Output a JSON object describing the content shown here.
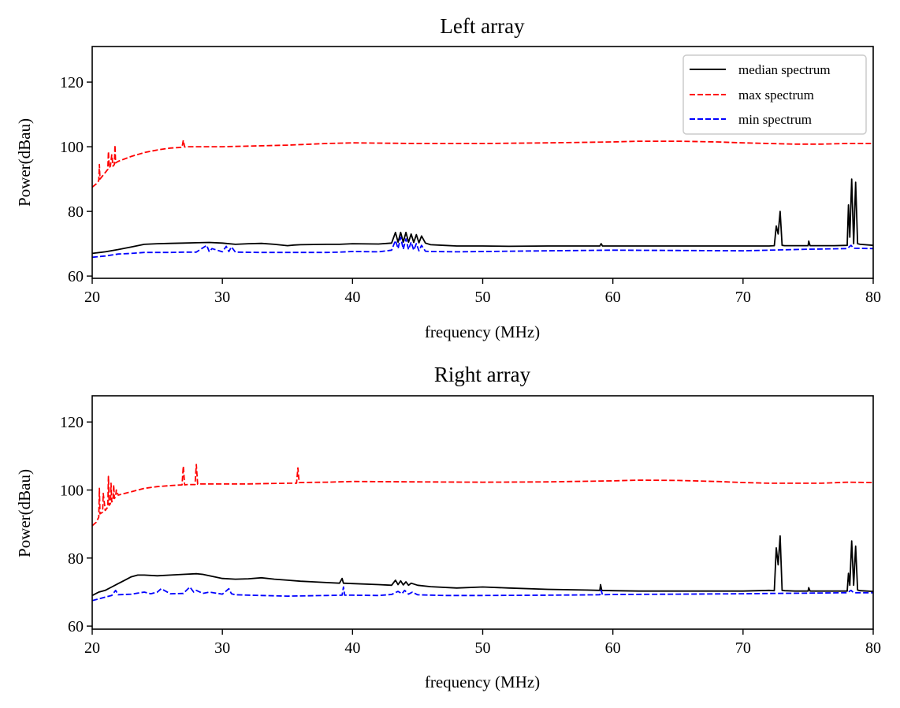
{
  "chart_data": [
    {
      "type": "line",
      "title": "Left array",
      "xlabel": "frequency (MHz)",
      "ylabel": "Power(dBau)",
      "xlim": [
        20,
        80
      ],
      "ylim": [
        59.3,
        131.0
      ],
      "xticks": [
        20,
        30,
        40,
        50,
        60,
        70,
        80
      ],
      "yticks": [
        60,
        80,
        100,
        120
      ],
      "grid": false,
      "legend": {
        "placement": "top-right",
        "entries": [
          "median spectrum",
          "max spectrum",
          "min spectrum"
        ]
      },
      "series": [
        {
          "name": "median spectrum",
          "color": "#000000",
          "style": "solid",
          "x": [
            20,
            21,
            22,
            23,
            24,
            25,
            26,
            27,
            28,
            29,
            30,
            31,
            32,
            33,
            34,
            35,
            35.5,
            36,
            38,
            39,
            40,
            42,
            43,
            43.3,
            43.5,
            43.7,
            43.9,
            44.1,
            44.3,
            44.5,
            44.7,
            44.9,
            45.1,
            45.3,
            45.6,
            46,
            47,
            48,
            50,
            52,
            55,
            58,
            59,
            59.1,
            59.2,
            60,
            62,
            65,
            68,
            70,
            72,
            72.4,
            72.55,
            72.7,
            72.85,
            73.0,
            73.2,
            74,
            75,
            75.05,
            75.15,
            76,
            77,
            78,
            78.1,
            78.2,
            78.35,
            78.5,
            78.65,
            78.8,
            79,
            80
          ],
          "y": [
            67,
            67.5,
            68.2,
            69,
            69.8,
            70,
            70.1,
            70.2,
            70.3,
            70.4,
            70.2,
            69.8,
            70,
            70.1,
            69.8,
            69.4,
            69.6,
            69.7,
            69.8,
            69.8,
            70,
            69.9,
            70.2,
            73.5,
            70.5,
            73.5,
            70.5,
            73.5,
            70.5,
            73,
            70.4,
            72.8,
            70.3,
            72.4,
            70.2,
            69.7,
            69.5,
            69.3,
            69.3,
            69.2,
            69.3,
            69.3,
            69.3,
            70,
            69.3,
            69.3,
            69.3,
            69.3,
            69.3,
            69.3,
            69.3,
            69.4,
            75.5,
            73,
            80,
            69.5,
            69.4,
            69.4,
            69.4,
            70.8,
            69.4,
            69.4,
            69.4,
            69.5,
            82,
            72,
            90,
            70,
            89,
            70,
            69.8,
            69.5
          ]
        },
        {
          "name": "max spectrum",
          "color": "#ff0000",
          "style": "dashed",
          "x": [
            20,
            20.3,
            20.5,
            20.55,
            20.6,
            20.8,
            21,
            21.2,
            21.25,
            21.3,
            21.4,
            21.5,
            21.6,
            21.7,
            21.75,
            21.8,
            22,
            23,
            24,
            25,
            26,
            26.9,
            27,
            27.1,
            27.3,
            28,
            30,
            32,
            35,
            38,
            40,
            45,
            50,
            55,
            60,
            62,
            65,
            68,
            70,
            72,
            74,
            76,
            78,
            80
          ],
          "y": [
            87.5,
            88.5,
            89.5,
            94.5,
            90,
            91,
            92,
            93,
            98.5,
            93.5,
            94,
            97.5,
            94,
            94.5,
            100.5,
            95,
            95.5,
            97,
            98.2,
            99,
            99.6,
            99.8,
            102,
            99.9,
            100,
            100,
            100,
            100.2,
            100.5,
            101,
            101.2,
            101,
            101,
            101.2,
            101.5,
            101.7,
            101.7,
            101.5,
            101.2,
            101,
            100.8,
            100.8,
            101,
            101
          ]
        },
        {
          "name": "min spectrum",
          "color": "#0000ff",
          "style": "dashed",
          "x": [
            20,
            21,
            22,
            23,
            24,
            25,
            26,
            27,
            28,
            28.8,
            29,
            29.2,
            30,
            30.3,
            30.5,
            30.7,
            31,
            33,
            35,
            38,
            39,
            40,
            42,
            43,
            43.3,
            43.5,
            43.7,
            43.9,
            44.1,
            44.3,
            44.5,
            44.7,
            44.9,
            45.1,
            45.3,
            45.6,
            46,
            48,
            50,
            55,
            60,
            65,
            70,
            72,
            75,
            78,
            78.3,
            78.5,
            80
          ],
          "y": [
            65.8,
            66.2,
            66.8,
            67,
            67.3,
            67.3,
            67.3,
            67.4,
            67.4,
            69.5,
            67.5,
            68.5,
            67.5,
            69.2,
            67.6,
            69,
            67.4,
            67.3,
            67.3,
            67.3,
            67.4,
            67.6,
            67.5,
            68,
            71,
            68.5,
            72,
            68.3,
            71.5,
            68.2,
            70.5,
            68,
            70,
            67.8,
            69.5,
            67.7,
            67.6,
            67.5,
            67.6,
            67.8,
            68,
            67.9,
            67.8,
            68,
            68.3,
            68.5,
            69.5,
            68.6,
            68.5
          ]
        }
      ]
    },
    {
      "type": "line",
      "title": "Right array",
      "xlabel": "frequency (MHz)",
      "ylabel": "Power(dBau)",
      "xlim": [
        20,
        80
      ],
      "ylim": [
        59.1,
        127.7
      ],
      "xticks": [
        20,
        30,
        40,
        50,
        60,
        70,
        80
      ],
      "yticks": [
        60,
        80,
        100,
        120
      ],
      "grid": false,
      "series": [
        {
          "name": "median spectrum",
          "color": "#000000",
          "style": "solid",
          "x": [
            20,
            20.5,
            21,
            21.5,
            22,
            22.5,
            23,
            23.5,
            24,
            25,
            26,
            27,
            28,
            28.5,
            29,
            30,
            31,
            32,
            33,
            34,
            35,
            36,
            37,
            38,
            39,
            39.2,
            39.3,
            40,
            42,
            43,
            43.3,
            43.5,
            43.7,
            43.9,
            44.1,
            44.3,
            44.5,
            45,
            46,
            48,
            50,
            52,
            55,
            58,
            59,
            59.05,
            59.15,
            60,
            62,
            65,
            68,
            70,
            72,
            72.4,
            72.55,
            72.7,
            72.85,
            73,
            73.2,
            74,
            75,
            75.05,
            75.15,
            76,
            78,
            78.1,
            78.2,
            78.35,
            78.5,
            78.65,
            78.8,
            79,
            80
          ],
          "y": [
            69,
            70,
            70.5,
            71.5,
            72.5,
            73.5,
            74.5,
            75,
            75,
            74.8,
            75,
            75.2,
            75.4,
            75.2,
            74.8,
            74,
            73.8,
            73.9,
            74.2,
            73.8,
            73.5,
            73.2,
            73,
            72.8,
            72.6,
            74,
            72.6,
            72.5,
            72.2,
            72,
            73.5,
            72.2,
            73.3,
            72.1,
            73,
            72,
            72.6,
            72,
            71.6,
            71.2,
            71.5,
            71.2,
            70.8,
            70.6,
            70.5,
            72.2,
            70.5,
            70.4,
            70.3,
            70.3,
            70.3,
            70.3,
            70.5,
            70.4,
            83,
            78,
            86.5,
            70.5,
            70.4,
            70.3,
            70.3,
            71.3,
            70.3,
            70.3,
            70.3,
            75.5,
            72,
            85,
            72,
            83.5,
            70.6,
            70.4,
            70.2
          ]
        },
        {
          "name": "max spectrum",
          "color": "#ff0000",
          "style": "dashed",
          "x": [
            20,
            20.3,
            20.5,
            20.55,
            20.6,
            20.8,
            20.85,
            21,
            21.2,
            21.25,
            21.3,
            21.4,
            21.45,
            21.5,
            21.6,
            21.65,
            21.7,
            21.8,
            21.85,
            22,
            23,
            24,
            25,
            26,
            26.9,
            27,
            27.1,
            27.3,
            27.9,
            28,
            28.1,
            28.3,
            30,
            32,
            35,
            35.7,
            35.8,
            35.9,
            36,
            38,
            40,
            45,
            50,
            55,
            60,
            62,
            65,
            68,
            70,
            72,
            74,
            76,
            78,
            80
          ],
          "y": [
            89.5,
            90.5,
            92,
            100.5,
            93,
            93.5,
            99,
            94,
            95,
            104,
            95.5,
            96,
            102,
            96.5,
            97,
            101.5,
            97.5,
            98,
            100,
            98.5,
            99.5,
            100.5,
            101,
            101.3,
            101.5,
            107,
            101.5,
            101.6,
            101.6,
            107.5,
            101.7,
            101.8,
            101.8,
            101.8,
            102,
            102,
            106.5,
            102.2,
            102.2,
            102.3,
            102.5,
            102.4,
            102.3,
            102.4,
            102.7,
            102.9,
            102.8,
            102.5,
            102.2,
            102,
            102,
            102,
            102.3,
            102.2
          ]
        },
        {
          "name": "min spectrum",
          "color": "#0000ff",
          "style": "dashed",
          "x": [
            20,
            20.5,
            21,
            21.5,
            21.8,
            22,
            23,
            24,
            24.5,
            25,
            25.3,
            26,
            27,
            27.5,
            27.8,
            28,
            28.5,
            29,
            30,
            30.5,
            30.7,
            31,
            33,
            35,
            38,
            39.2,
            39.3,
            39.4,
            40,
            42,
            43,
            43.5,
            43.8,
            44,
            44.3,
            44.6,
            45,
            47,
            50,
            55,
            59,
            59.1,
            59.2,
            60,
            65,
            70,
            72,
            75,
            78,
            78.3,
            78.5,
            80
          ],
          "y": [
            67.5,
            68,
            68.5,
            69,
            70.5,
            69.2,
            69.4,
            70,
            69.5,
            70,
            71,
            69.5,
            69.6,
            71.5,
            70,
            70.5,
            69.6,
            70,
            69.4,
            71,
            69.5,
            69.2,
            69,
            68.8,
            69,
            69.1,
            71.5,
            69.1,
            69.1,
            69,
            69.3,
            70.2,
            69.5,
            70.5,
            69.4,
            70,
            69.2,
            69,
            69,
            69.1,
            69.2,
            70.5,
            69.2,
            69.3,
            69.4,
            69.5,
            69.6,
            69.7,
            69.8,
            70.5,
            69.8,
            69.8
          ]
        }
      ]
    }
  ]
}
